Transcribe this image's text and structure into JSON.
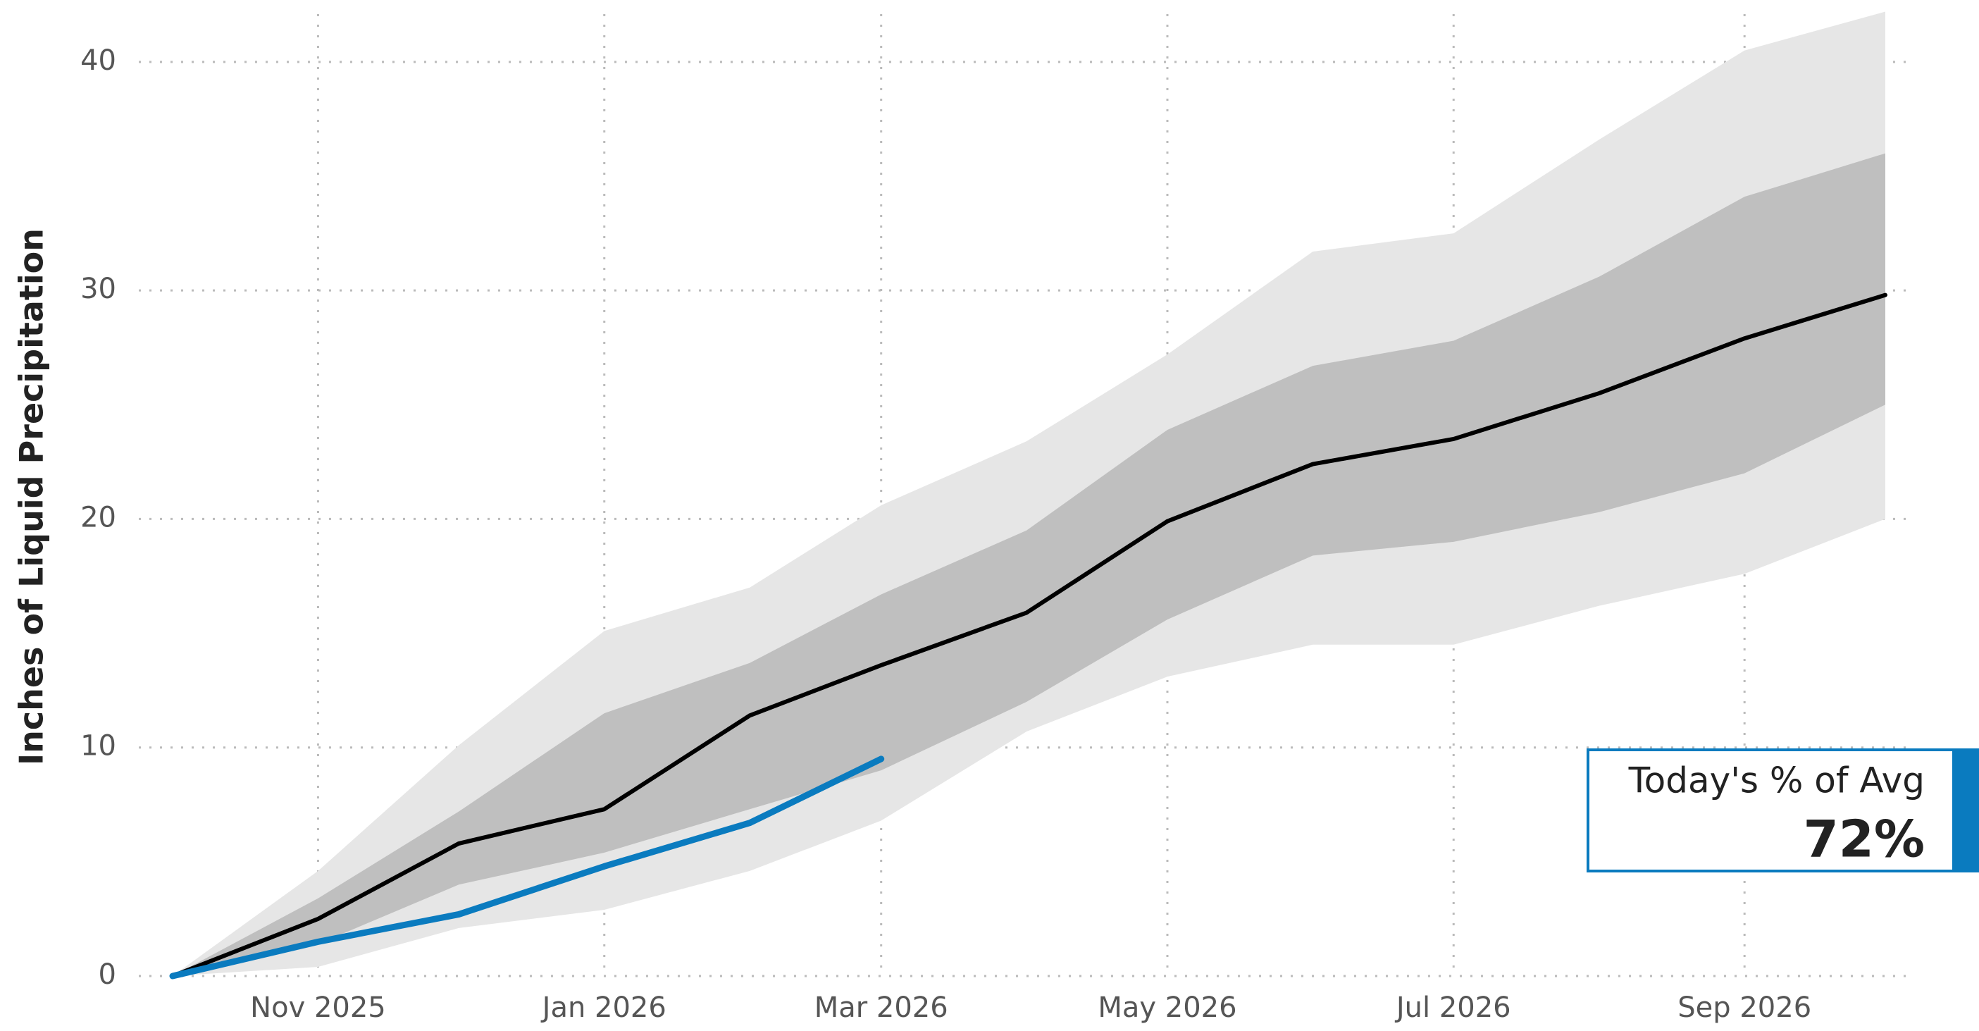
{
  "chart_data": {
    "type": "line",
    "y_label": "Inches of Liquid Precipitation",
    "x": [
      "2025-10",
      "2025-11",
      "2025-12",
      "2026-01",
      "2026-02",
      "2026-03",
      "2026-04",
      "2026-05",
      "2026-06",
      "2026-07",
      "2026-08",
      "2026-09",
      "2026-10"
    ],
    "xlim": [
      "2025-10",
      "2026-10"
    ],
    "xticks": [
      {
        "value": "2025-11",
        "label": "Nov 2025"
      },
      {
        "value": "2026-01",
        "label": "Jan 2026"
      },
      {
        "value": "2026-03",
        "label": "Mar 2026"
      },
      {
        "value": "2026-05",
        "label": "May 2026"
      },
      {
        "value": "2026-07",
        "label": "Jul 2026"
      },
      {
        "value": "2026-09",
        "label": "Sep 2026"
      }
    ],
    "ylim": [
      0,
      42
    ],
    "yticks": [
      0,
      10,
      20,
      30,
      40
    ],
    "grid": true,
    "bands": [
      {
        "color": "#e6e6e6",
        "upper": [
          0,
          4.6,
          10.1,
          15.1,
          17.0,
          20.6,
          23.4,
          27.2,
          31.7,
          32.5,
          36.6,
          40.5,
          42.2
        ],
        "lower": [
          0,
          0.4,
          2.1,
          2.9,
          4.6,
          6.8,
          10.7,
          13.1,
          14.5,
          14.5,
          16.2,
          17.6,
          20.0
        ]
      },
      {
        "color": "#bfbfbf",
        "upper": [
          0,
          3.4,
          7.2,
          11.5,
          13.7,
          16.7,
          19.5,
          23.9,
          26.7,
          27.8,
          30.6,
          34.1,
          36.0
        ],
        "lower": [
          0,
          1.4,
          4.0,
          5.4,
          7.3,
          9.0,
          12.0,
          15.6,
          18.4,
          19.0,
          20.3,
          22.0,
          25.0
        ]
      }
    ],
    "series": [
      {
        "color": "#000000",
        "values": [
          0,
          2.5,
          5.8,
          7.3,
          11.4,
          13.6,
          15.9,
          19.9,
          22.4,
          23.5,
          25.5,
          27.9,
          29.8
        ]
      },
      {
        "color": "#0a7bbf",
        "values": [
          0,
          1.5,
          2.7,
          4.8,
          6.7,
          9.5,
          null,
          null,
          null,
          null,
          null,
          null,
          null
        ]
      }
    ],
    "annotation": {
      "label": "Today's % of Avg",
      "value": {
        "value": 72,
        "label": "72%"
      },
      "color": "#0a7bbf"
    }
  }
}
